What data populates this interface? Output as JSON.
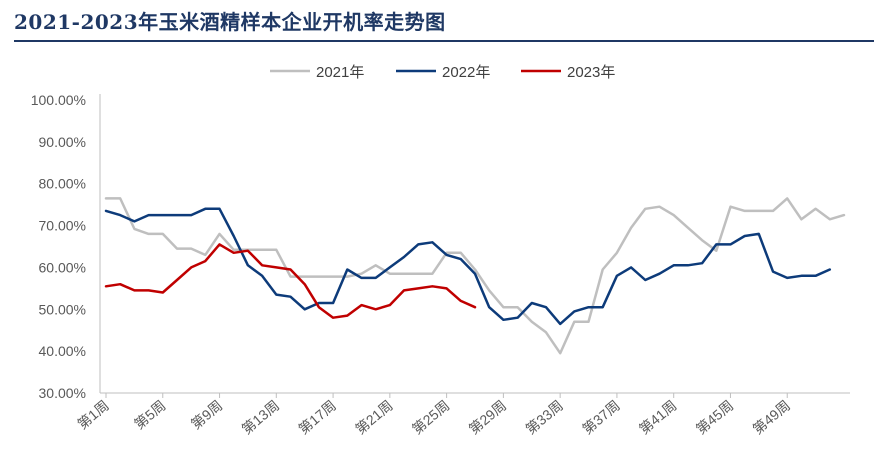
{
  "chart_data": {
    "type": "line",
    "title": "2021-2023年玉米酒精样本企业开机率走势图",
    "xlabel": "",
    "ylabel": "",
    "ylim": [
      30,
      100
    ],
    "y_ticks": [
      "30.00%",
      "40.00%",
      "50.00%",
      "60.00%",
      "70.00%",
      "80.00%",
      "90.00%",
      "100.00%"
    ],
    "x_tick_labels": [
      "第1周",
      "第5周",
      "第9周",
      "第13周",
      "第17周",
      "第21周",
      "第25周",
      "第29周",
      "第33周",
      "第37周",
      "第41周",
      "第45周",
      "第49周"
    ],
    "grid": false,
    "legend_position": "top-center",
    "series": [
      {
        "name": "2021年",
        "color": "#bfbfbf",
        "values": [
          76.5,
          76.5,
          69.2,
          68.0,
          68.0,
          64.5,
          64.5,
          63.0,
          68.0,
          64.2,
          64.2,
          64.2,
          64.2,
          57.8,
          57.8,
          57.8,
          57.8,
          57.8,
          58.5,
          60.5,
          58.5,
          58.5,
          58.5,
          58.5,
          63.5,
          63.5,
          59.5,
          54.5,
          50.5,
          50.5,
          47.0,
          44.5,
          39.5,
          47.0,
          47.0,
          59.5,
          63.5,
          69.5,
          74.0,
          74.5,
          72.5,
          69.5,
          66.5,
          64.0,
          74.5,
          73.5,
          73.5,
          73.5,
          76.5,
          71.5,
          74.0,
          71.5,
          72.5
        ]
      },
      {
        "name": "2022年",
        "color": "#0d3b7a",
        "values": [
          73.5,
          72.5,
          71.0,
          72.5,
          72.5,
          72.5,
          72.5,
          74.0,
          74.0,
          67.5,
          60.5,
          58.0,
          53.5,
          53.0,
          50.0,
          51.5,
          51.5,
          59.5,
          57.5,
          57.5,
          60.0,
          62.5,
          65.5,
          66.0,
          63.0,
          62.0,
          58.5,
          50.5,
          47.5,
          48.0,
          51.5,
          50.5,
          46.5,
          49.5,
          50.5,
          50.5,
          58.0,
          60.0,
          57.0,
          58.5,
          60.5,
          60.5,
          61.0,
          65.5,
          65.5,
          67.5,
          68.0,
          59.0,
          57.5,
          58.0,
          58.0,
          59.5
        ]
      },
      {
        "name": "2023年",
        "color": "#c00000",
        "values": [
          55.5,
          56.0,
          54.5,
          54.5,
          54.0,
          57.0,
          60.0,
          61.5,
          65.5,
          63.5,
          64.0,
          60.5,
          60.0,
          59.5,
          56.0,
          50.5,
          48.0,
          48.5,
          51.0,
          50.0,
          51.0,
          54.5,
          55.0,
          55.5,
          55.0,
          52.0,
          50.5
        ]
      }
    ]
  }
}
